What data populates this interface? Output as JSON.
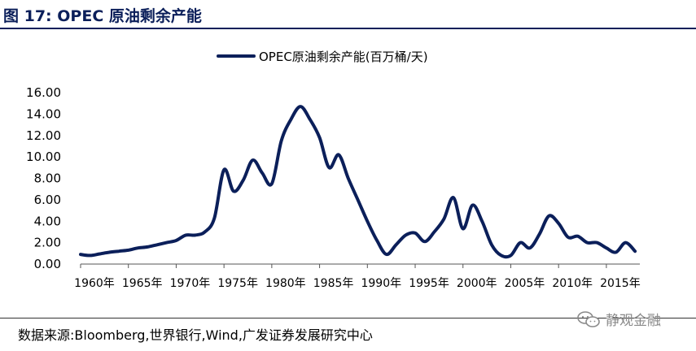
{
  "figure": {
    "title": "图 17:  OPEC 原油剩余产能",
    "source": "数据来源:Bloomberg,世界银行,Wind,广发证券发展研究中心",
    "watermark": "静观金融",
    "accent_color": "#0b1f5a",
    "watermark_icon": "wechat-icon"
  },
  "chart_data": {
    "type": "line",
    "title": "",
    "xlabel": "",
    "ylabel": "",
    "ylim": [
      0,
      16
    ],
    "yticks": [
      0,
      2,
      4,
      6,
      8,
      10,
      12,
      14,
      16
    ],
    "ytick_labels": [
      "0.00",
      "2.00",
      "4.00",
      "6.00",
      "8.00",
      "10.00",
      "12.00",
      "14.00",
      "16.00"
    ],
    "xlim": [
      1960,
      2018.5
    ],
    "xticks": [
      1960,
      1965,
      1970,
      1975,
      1980,
      1985,
      1990,
      1995,
      2000,
      2005,
      2010,
      2015
    ],
    "xtick_labels": [
      "1960年",
      "1965年",
      "1970年",
      "1975年",
      "1980年",
      "1985年",
      "1990年",
      "1995年",
      "2000年",
      "2005年",
      "2010年",
      "2015年"
    ],
    "grid": false,
    "legend": "top-center",
    "series": [
      {
        "name": "OPEC原油剩余产能(百万桶/天)",
        "color": "#0b1f5a",
        "x": [
          1960,
          1961,
          1962,
          1963,
          1964,
          1965,
          1966,
          1967,
          1968,
          1969,
          1970,
          1971,
          1972,
          1973,
          1974,
          1975,
          1976,
          1977,
          1978,
          1979,
          1980,
          1981,
          1982,
          1983,
          1984,
          1985,
          1986,
          1987,
          1988,
          1989,
          1990,
          1991,
          1992,
          1993,
          1994,
          1995,
          1996,
          1997,
          1998,
          1999,
          2000,
          2001,
          2002,
          2003,
          2004,
          2005,
          2006,
          2007,
          2008,
          2009,
          2010,
          2011,
          2012,
          2013,
          2014,
          2015,
          2016,
          2017,
          2018
        ],
        "values": [
          0.9,
          0.8,
          0.95,
          1.1,
          1.2,
          1.3,
          1.5,
          1.6,
          1.8,
          2.0,
          2.2,
          2.7,
          2.7,
          3.0,
          4.3,
          8.8,
          6.8,
          7.8,
          9.7,
          8.5,
          7.5,
          11.5,
          13.5,
          14.7,
          13.5,
          11.8,
          9.0,
          10.2,
          8.0,
          6.0,
          4.0,
          2.2,
          0.9,
          1.8,
          2.7,
          2.9,
          2.1,
          3.0,
          4.2,
          6.2,
          3.3,
          5.5,
          4.0,
          1.8,
          0.8,
          0.8,
          2.0,
          1.5,
          2.8,
          4.5,
          3.8,
          2.5,
          2.6,
          2.0,
          2.0,
          1.5,
          1.1,
          2.0,
          1.2
        ]
      }
    ]
  }
}
